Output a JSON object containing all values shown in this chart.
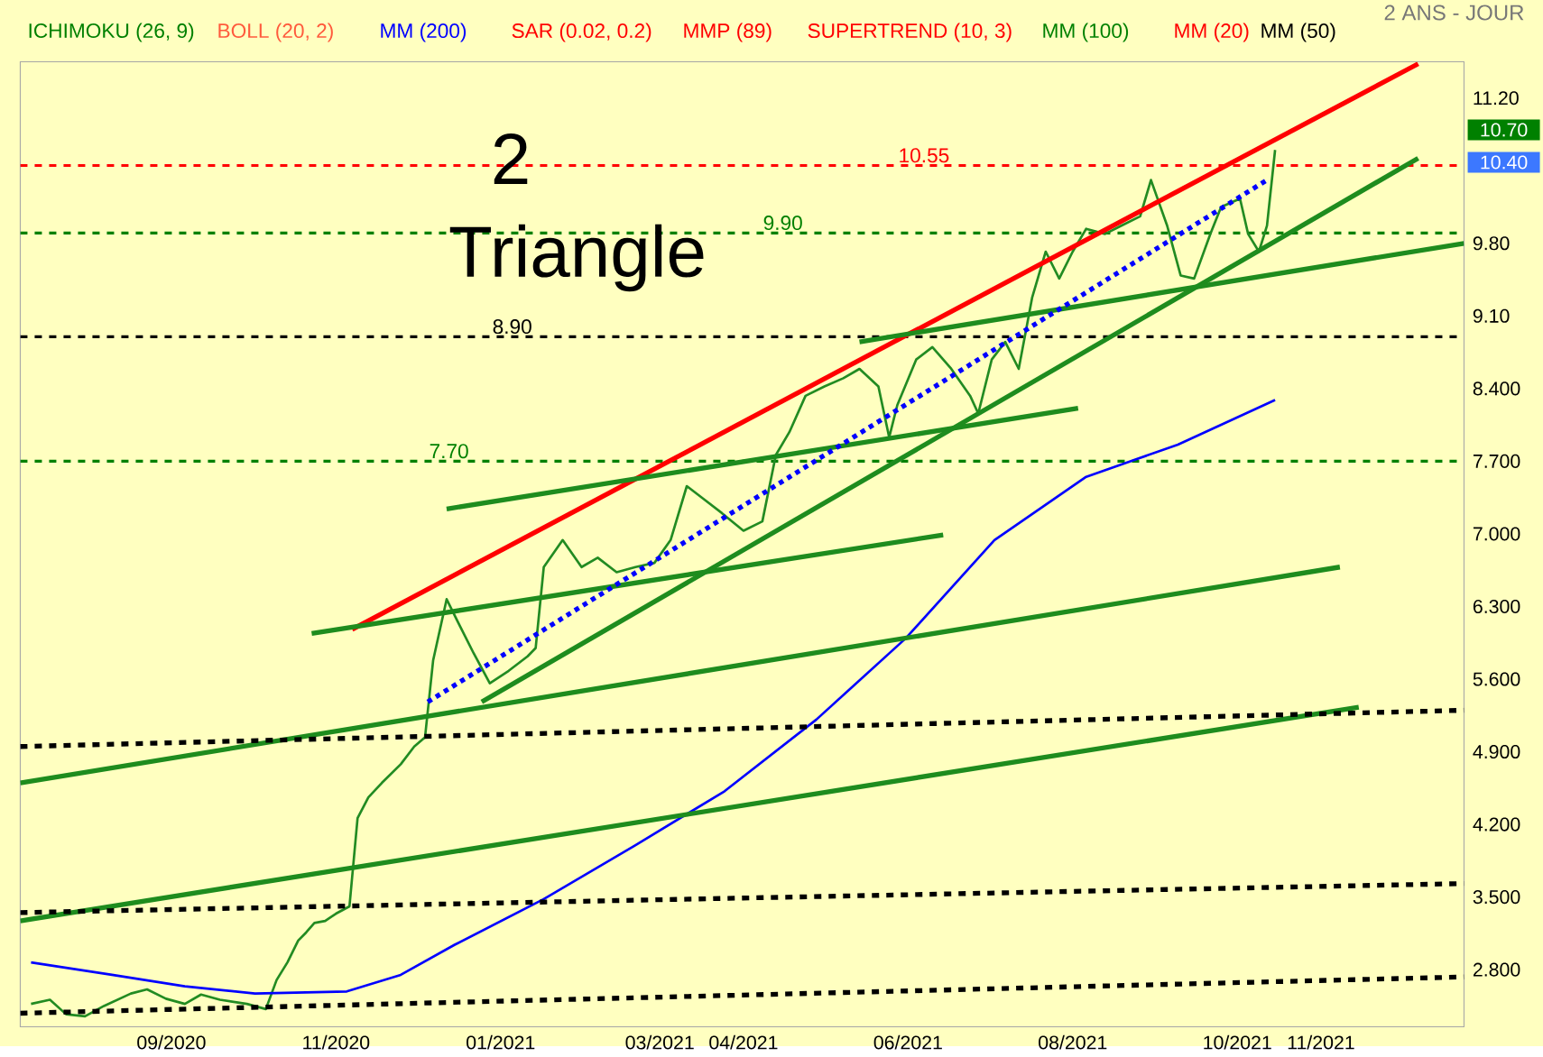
{
  "chart_data": {
    "type": "line",
    "subtitle": "2 ANS - JOUR",
    "annotations": [
      "ICHIMOKU (26, 9)",
      "BOLL (20, 2)",
      "SAR (0.02, 0.2)",
      "MMP (89)",
      "SUPERTREND (10, 3)",
      "MM (100)",
      "MM (20)",
      "MM (50)",
      "2",
      "Triangle",
      "10.70",
      "10.40"
    ],
    "xlim": [
      "2020-07-07",
      "2021-12-24"
    ],
    "ylim": [
      2.25,
      11.55
    ],
    "xticks": [
      {
        "value": "2020-09-01",
        "label": "09/2020"
      },
      {
        "value": "2020-11-01",
        "label": "11/2020"
      },
      {
        "value": "2021-01-01",
        "label": "01/2021"
      },
      {
        "value": "2021-03-01",
        "label": "03/2021"
      },
      {
        "value": "2021-04-01",
        "label": "04/2021"
      },
      {
        "value": "2021-06-01",
        "label": "06/2021"
      },
      {
        "value": "2021-08-01",
        "label": "08/2021"
      },
      {
        "value": "2021-10-01",
        "label": "10/2021"
      },
      {
        "value": "2021-11-01",
        "label": "11/2021"
      }
    ],
    "yticks": [
      {
        "value": 2.8,
        "label": "2.800"
      },
      {
        "value": 3.5,
        "label": "3.500"
      },
      {
        "value": 4.2,
        "label": "4.200"
      },
      {
        "value": 4.9,
        "label": "4.900"
      },
      {
        "value": 5.6,
        "label": "5.600"
      },
      {
        "value": 6.3,
        "label": "6.300"
      },
      {
        "value": 7.0,
        "label": "7.000"
      },
      {
        "value": 7.7,
        "label": "7.700"
      },
      {
        "value": 8.4,
        "label": "8.400"
      },
      {
        "value": 9.1,
        "label": "9.10"
      },
      {
        "value": 9.8,
        "label": "9.80"
      },
      {
        "value": 11.2,
        "label": "11.20"
      }
    ],
    "ref_lines": [
      {
        "axis": "y",
        "value": 10.55,
        "label": "10.55",
        "color": "#ff0000",
        "line_style": "dashed"
      },
      {
        "axis": "y",
        "value": 9.9,
        "label": "9.90",
        "color": "#008000",
        "line_style": "dashed"
      },
      {
        "axis": "y",
        "value": 8.9,
        "label": "8.90",
        "color": "#000000",
        "line_style": "dashed"
      },
      {
        "axis": "y",
        "value": 7.7,
        "label": "7.70",
        "color": "#008000",
        "line_style": "dashed"
      }
    ],
    "series": [
      {
        "color": "#228b22",
        "x": [
          "2020-07-11",
          "2020-07-18",
          "2020-07-24",
          "2020-07-31",
          "2020-08-07",
          "2020-08-17",
          "2020-08-23",
          "2020-08-30",
          "2020-09-06",
          "2020-09-12",
          "2020-09-19",
          "2020-09-29",
          "2020-10-06",
          "2020-10-10",
          "2020-10-14",
          "2020-10-18",
          "2020-10-21",
          "2020-10-24",
          "2020-10-28",
          "2020-11-01",
          "2020-11-06",
          "2020-11-09",
          "2020-11-13",
          "2020-11-18",
          "2020-11-25",
          "2020-11-30",
          "2020-12-04",
          "2020-12-07",
          "2020-12-12",
          "2020-12-16",
          "2020-12-22",
          "2020-12-28",
          "2021-01-04",
          "2021-01-11",
          "2021-01-14",
          "2021-01-17",
          "2021-01-24",
          "2021-01-31",
          "2021-02-06",
          "2021-02-13",
          "2021-02-20",
          "2021-02-27",
          "2021-03-05",
          "2021-03-11",
          "2021-03-17",
          "2021-03-24",
          "2021-04-01",
          "2021-04-08",
          "2021-04-13",
          "2021-04-18",
          "2021-04-24",
          "2021-05-01",
          "2021-05-08",
          "2021-05-14",
          "2021-05-21",
          "2021-05-25",
          "2021-05-28",
          "2021-06-04",
          "2021-06-10",
          "2021-06-17",
          "2021-06-24",
          "2021-06-27",
          "2021-07-02",
          "2021-07-07",
          "2021-07-12",
          "2021-07-17",
          "2021-07-22",
          "2021-07-27",
          "2021-08-01",
          "2021-08-06",
          "2021-08-13",
          "2021-08-19",
          "2021-08-26",
          "2021-08-30",
          "2021-09-05",
          "2021-09-10",
          "2021-09-15",
          "2021-09-21",
          "2021-09-25",
          "2021-10-02",
          "2021-10-05",
          "2021-10-09",
          "2021-10-12",
          "2021-10-15"
        ],
        "values": [
          2.47,
          2.51,
          2.37,
          2.35,
          2.45,
          2.57,
          2.61,
          2.52,
          2.47,
          2.56,
          2.51,
          2.47,
          2.42,
          2.7,
          2.87,
          3.08,
          3.16,
          3.25,
          3.27,
          3.34,
          3.41,
          4.26,
          4.46,
          4.6,
          4.78,
          4.95,
          5.04,
          5.78,
          6.37,
          6.16,
          5.85,
          5.56,
          5.68,
          5.82,
          5.9,
          6.68,
          6.94,
          6.68,
          6.77,
          6.63,
          6.68,
          6.72,
          6.94,
          7.46,
          7.34,
          7.2,
          7.03,
          7.12,
          7.76,
          7.98,
          8.33,
          8.42,
          8.5,
          8.59,
          8.42,
          7.93,
          8.24,
          8.68,
          8.8,
          8.59,
          8.33,
          8.16,
          8.68,
          8.85,
          8.59,
          9.28,
          9.72,
          9.46,
          9.72,
          9.94,
          9.89,
          9.97,
          10.06,
          10.41,
          9.97,
          9.49,
          9.46,
          9.89,
          10.15,
          10.23,
          9.89,
          9.72,
          9.97,
          10.7
        ]
      },
      {
        "name": "MM (200)",
        "color": "#0000ff",
        "x": [
          "2020-07-11",
          "2020-08-10",
          "2020-09-06",
          "2020-10-02",
          "2020-11-05",
          "2020-11-25",
          "2020-12-15",
          "2021-01-17",
          "2021-02-20",
          "2021-03-25",
          "2021-04-28",
          "2021-05-31",
          "2021-07-03",
          "2021-08-06",
          "2021-09-09",
          "2021-10-15"
        ],
        "values": [
          2.87,
          2.75,
          2.64,
          2.57,
          2.59,
          2.75,
          3.04,
          3.48,
          4.0,
          4.52,
          5.21,
          5.99,
          6.94,
          7.55,
          7.86,
          8.29
        ]
      },
      {
        "color": "#ff0000",
        "x": [
          "2020-11-07",
          "2021-12-07"
        ],
        "values": [
          6.08,
          11.53
        ]
      },
      {
        "color": "#1e8c1e",
        "x": [
          "2020-07-07",
          "2021-11-08"
        ],
        "values": [
          4.6,
          6.68
        ]
      },
      {
        "color": "#1e8c1e",
        "x": [
          "2020-07-07",
          "2021-11-15"
        ],
        "values": [
          3.27,
          5.33
        ]
      },
      {
        "color": "#1e8c1e",
        "x": [
          "2020-10-23",
          "2021-06-14"
        ],
        "values": [
          6.04,
          6.99
        ]
      },
      {
        "color": "#1e8c1e",
        "x": [
          "2020-12-12",
          "2021-08-03"
        ],
        "values": [
          7.24,
          8.21
        ]
      },
      {
        "color": "#1e8c1e",
        "x": [
          "2020-12-25",
          "2021-12-07"
        ],
        "values": [
          5.38,
          10.62
        ]
      },
      {
        "color": "#1e8c1e",
        "x": [
          "2021-05-14",
          "2021-12-24"
        ],
        "values": [
          8.85,
          9.8
        ]
      },
      {
        "color": "#0000ff",
        "line_style": "dotted",
        "x": [
          "2020-12-05",
          "2021-10-12"
        ],
        "values": [
          5.38,
          10.41
        ]
      },
      {
        "color": "#000000",
        "line_style": "dashed",
        "x": [
          "2020-07-07",
          "2021-12-24"
        ],
        "values": [
          4.95,
          5.3
        ]
      },
      {
        "color": "#000000",
        "line_style": "dashed",
        "x": [
          "2020-07-07",
          "2021-12-24"
        ],
        "values": [
          3.35,
          3.63
        ]
      },
      {
        "color": "#000000",
        "line_style": "dashed",
        "x": [
          "2020-07-07",
          "2021-12-24"
        ],
        "values": [
          2.38,
          2.73
        ]
      }
    ]
  }
}
